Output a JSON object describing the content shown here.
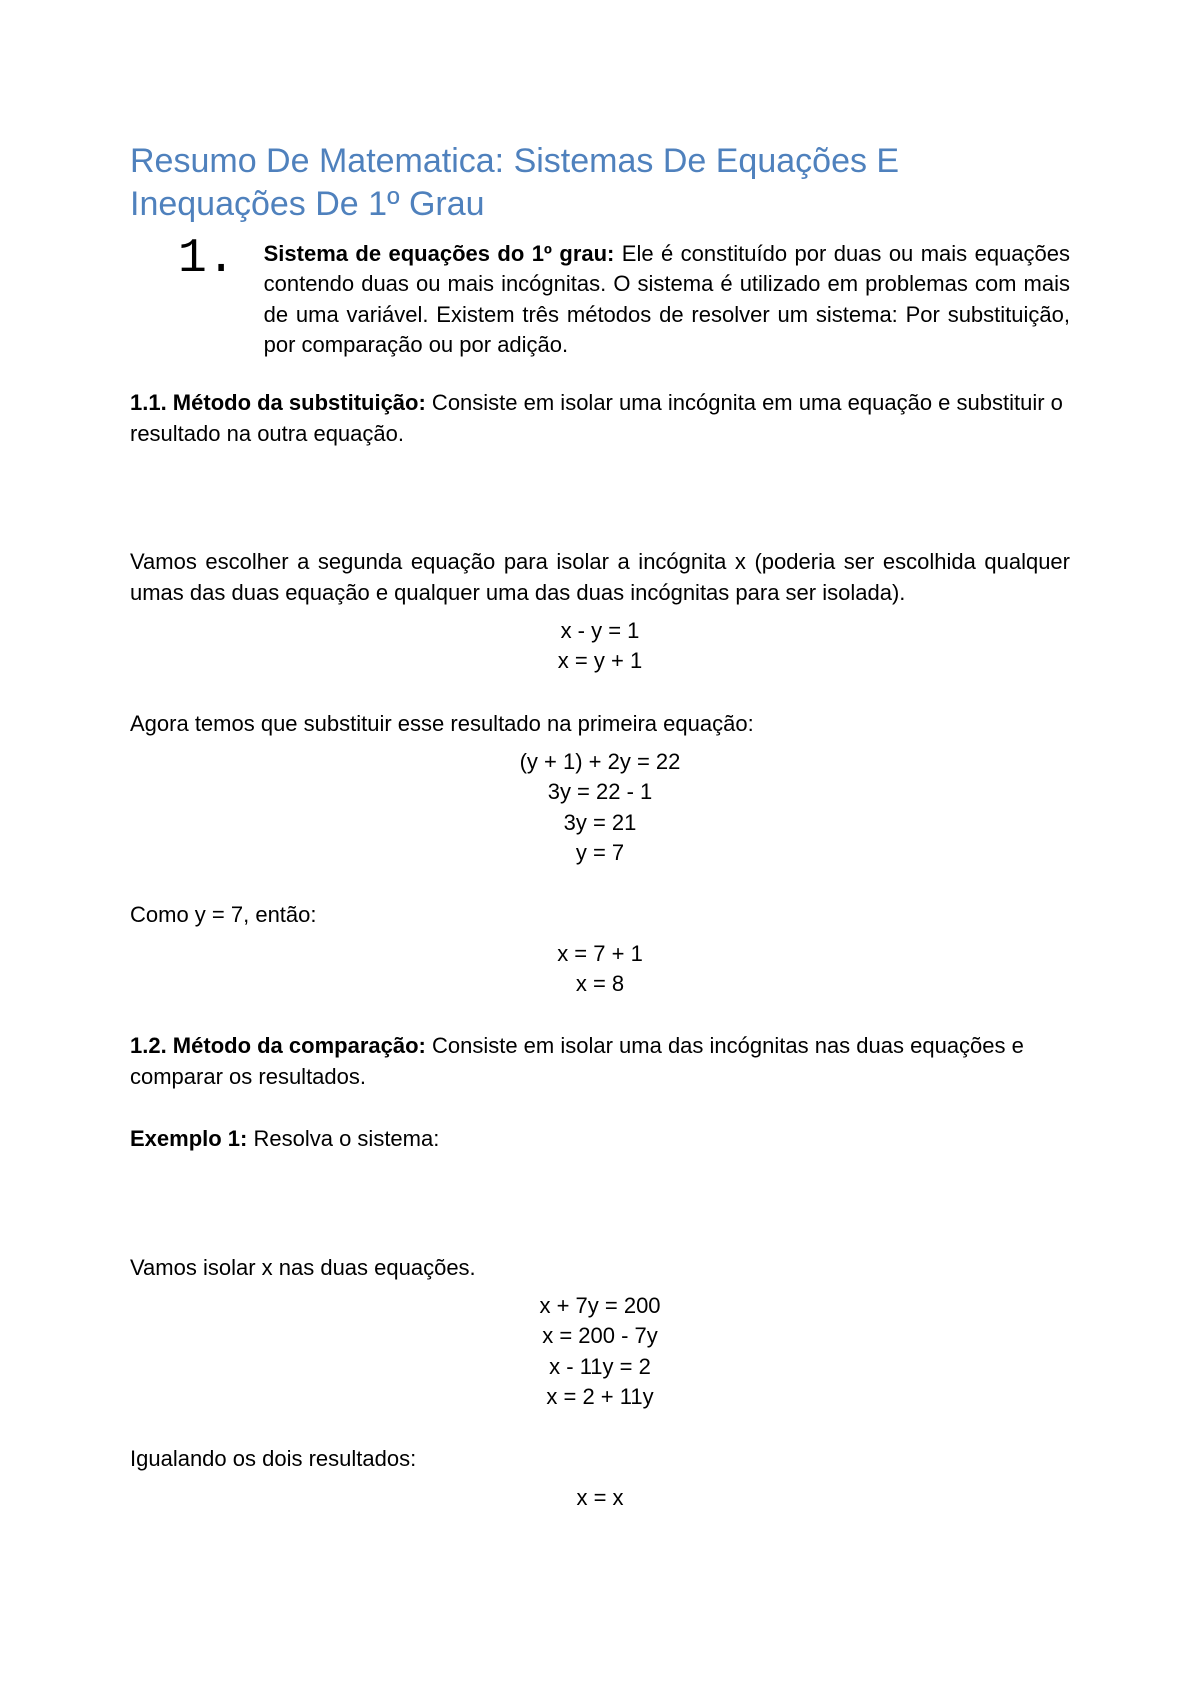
{
  "title": "Resumo De Matematica: Sistemas De Equações E Inequações De 1º Grau",
  "list_number": "1.",
  "intro": {
    "bold": "Sistema de equações do 1º grau:",
    "rest": " Ele é constituído por duas ou mais equações contendo duas ou mais incógnitas. O sistema é utilizado em problemas com mais de uma variável. Existem três métodos de resolver um sistema: Por substituição, por comparação ou por adição."
  },
  "s11": {
    "bold": "1.1. Método da substituição:",
    "rest": " Consiste em isolar uma incógnita em uma equação e substituir o resultado na outra equação."
  },
  "p_escolher": "Vamos escolher a segunda equação para isolar a incógnita x (poderia ser escolhida qualquer umas das duas equação e qualquer uma das duas incógnitas para ser isolada).",
  "eq_iso1": "x - y = 1",
  "eq_iso2": "x = y + 1",
  "p_agora": "Agora temos que substituir esse resultado na primeira equação:",
  "eq_sub1": "(y + 1) + 2y = 22",
  "eq_sub2": "3y = 22 - 1",
  "eq_sub3": "3y = 21",
  "eq_sub4": "y = 7",
  "p_como": "Como y = 7, então:",
  "eq_x1": "x = 7 + 1",
  "eq_x2": "x = 8",
  "s12": {
    "bold": "1.2. Método da comparação:",
    "rest": " Consiste em isolar uma  das incógnitas nas duas equações e comparar os resultados."
  },
  "ex1": {
    "bold": "Exemplo 1:",
    "rest": " Resolva o sistema:"
  },
  "p_isolar": "Vamos isolar x nas duas equações.",
  "eq_c1": "x  + 7y = 200",
  "eq_c2": "x = 200 - 7y",
  "eq_c3": "x - 11y = 2",
  "eq_c4": "x = 2 + 11y",
  "p_igual": "Igualando os dois resultados:",
  "eq_xx": "x = x",
  "colors": {
    "title": "#4f81bd",
    "text": "#000000",
    "background": "#ffffff"
  },
  "fonts": {
    "title_family": "Verdana",
    "title_size_pt": 26,
    "body_family": "Arial",
    "body_size_pt": 16,
    "number_family": "Courier New",
    "number_size_pt": 36
  }
}
